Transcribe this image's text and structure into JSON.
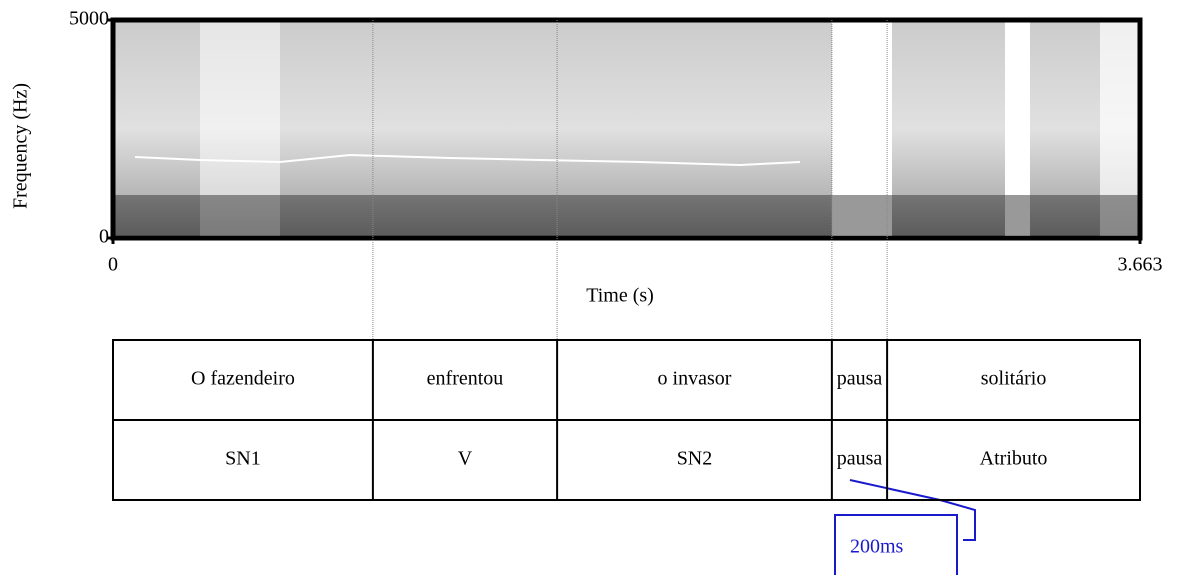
{
  "chart_data": {
    "type": "spectrogram",
    "xlabel": "Time (s)",
    "ylabel": "Frequency (Hz)",
    "xlim": [
      0,
      3.663
    ],
    "ylim": [
      0,
      5000
    ],
    "xticks": [
      0,
      3.663
    ],
    "yticks": [
      0,
      5000
    ],
    "tiers": [
      {
        "intervals": [
          {
            "label": "O fazendeiro",
            "start": 0,
            "end": 0.927
          },
          {
            "label": "enfrentou",
            "start": 0.927,
            "end": 1.584
          },
          {
            "label": "o invasor",
            "start": 1.584,
            "end": 2.564
          },
          {
            "label": "pausa",
            "start": 2.564,
            "end": 2.761
          },
          {
            "label": "solitário",
            "start": 2.761,
            "end": 3.663
          }
        ]
      },
      {
        "intervals": [
          {
            "label": "SN1",
            "start": 0,
            "end": 0.927
          },
          {
            "label": "V",
            "start": 0.927,
            "end": 1.584
          },
          {
            "label": "SN2",
            "start": 1.584,
            "end": 2.564
          },
          {
            "label": "pausa",
            "start": 2.564,
            "end": 2.761
          },
          {
            "label": "Atributo",
            "start": 2.761,
            "end": 3.663
          }
        ]
      }
    ],
    "annotation": "200ms"
  }
}
